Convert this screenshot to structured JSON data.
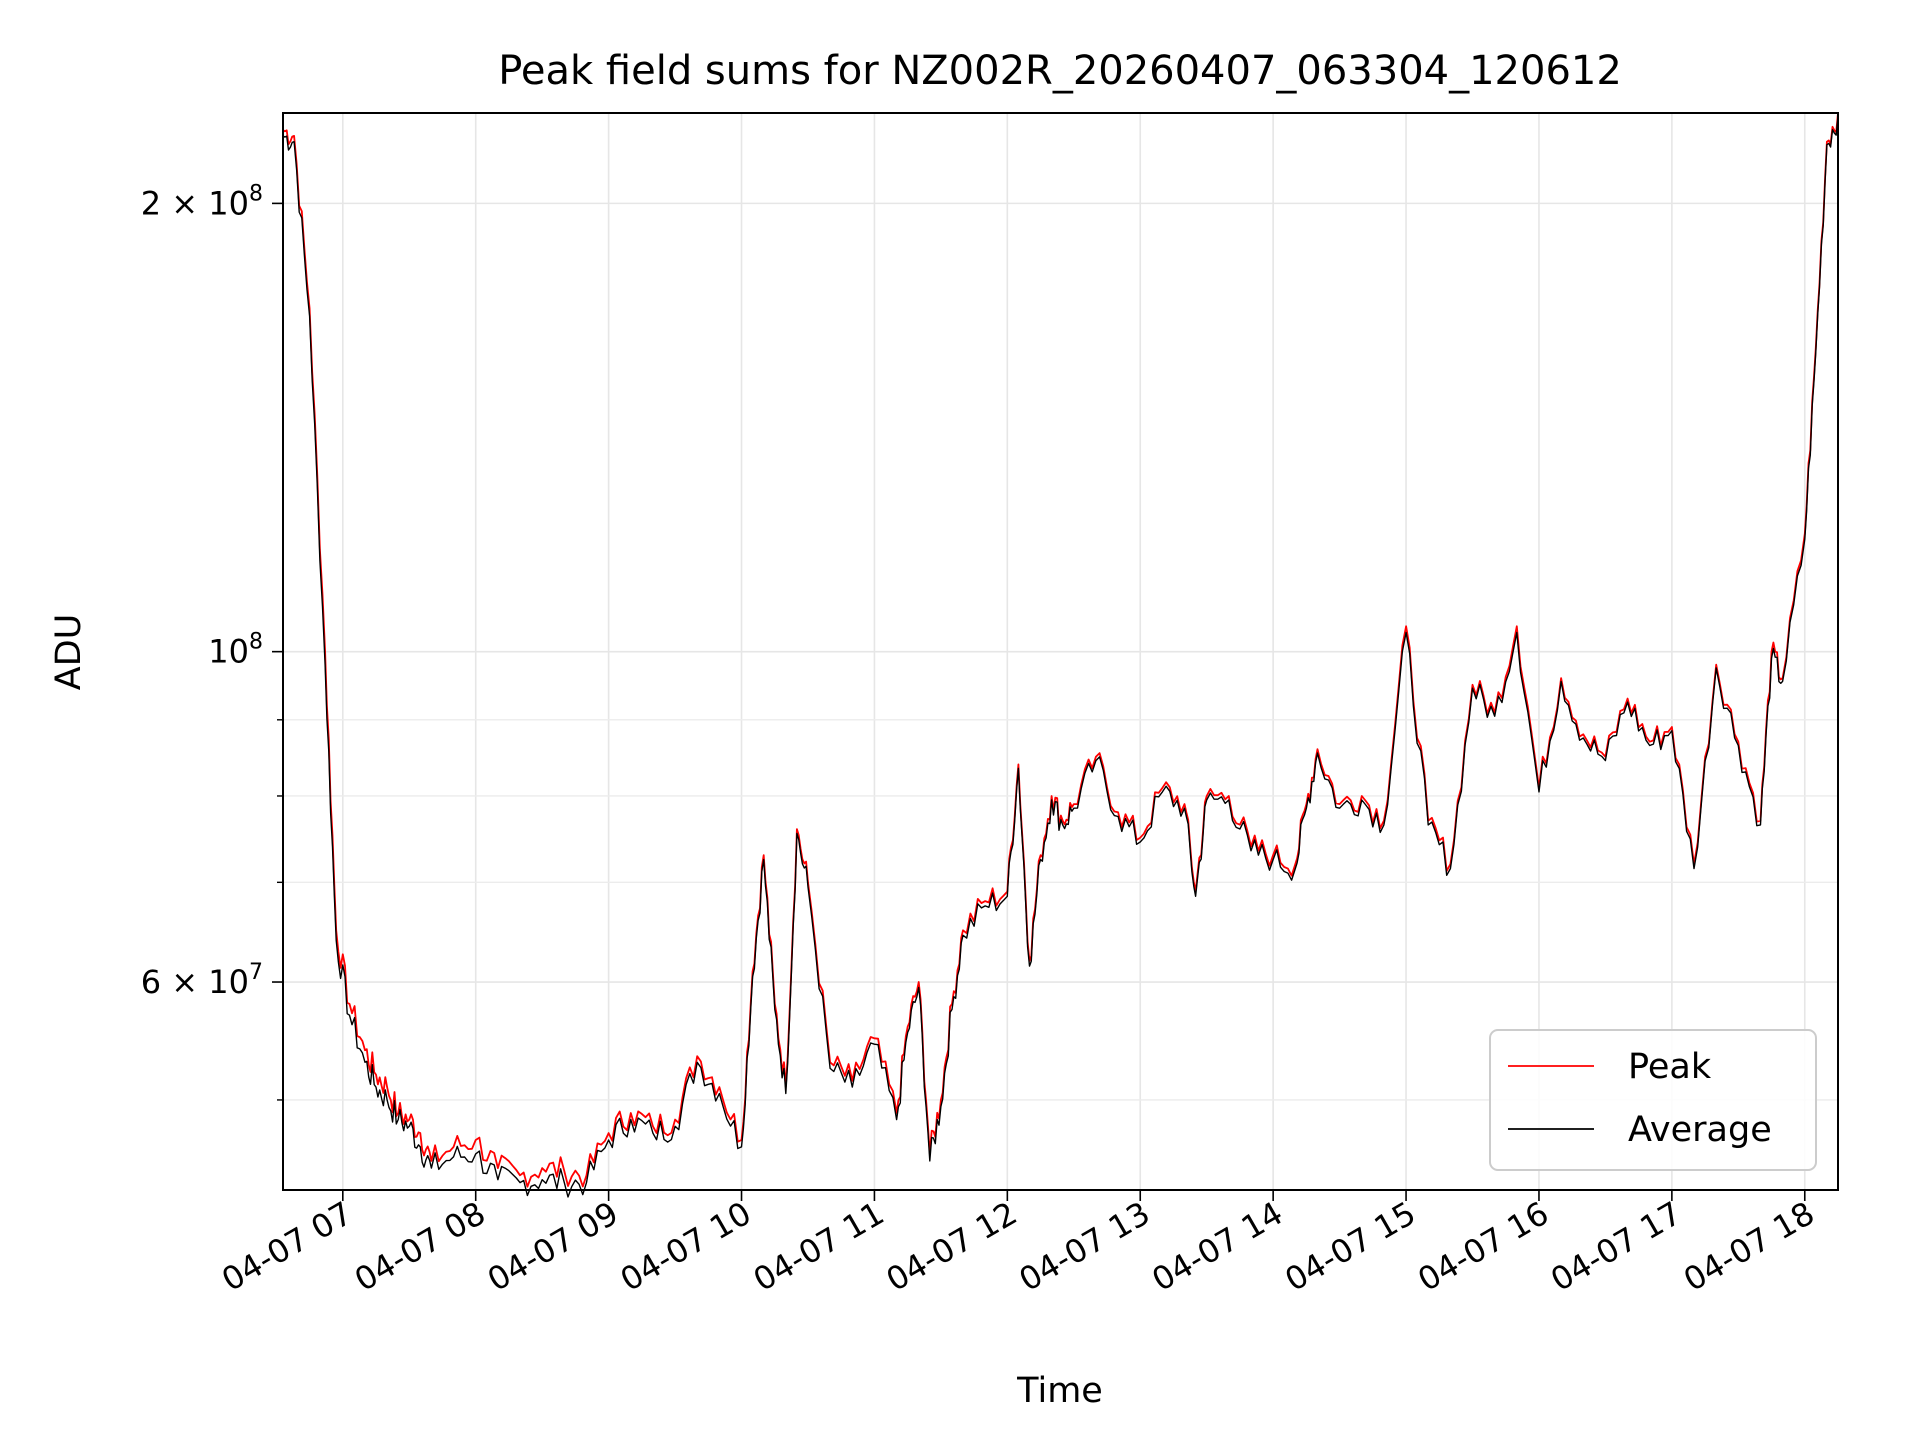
{
  "chart_data": {
    "type": "line",
    "title": "Peak field sums for NZ002R_20260407_063304_120612",
    "xlabel": "Time",
    "ylabel": "ADU",
    "yscale": "log",
    "xlim": [
      "2026-04-07 06:33",
      "2026-04-07 18:15"
    ],
    "ylim": [
      43500000,
      230000000
    ],
    "x_ticks": [
      "04-07 07",
      "04-07 08",
      "04-07 09",
      "04-07 10",
      "04-07 11",
      "04-07 12",
      "04-07 13",
      "04-07 14",
      "04-07 15",
      "04-07 16",
      "04-07 17",
      "04-07 18"
    ],
    "y_tick_labels": [
      {
        "value": 200000000,
        "base": "2 × 10",
        "exp": "8"
      },
      {
        "value": 100000000,
        "base": "10",
        "exp": "8"
      },
      {
        "value": 60000000,
        "base": "6 × 10",
        "exp": "7"
      }
    ],
    "y_minor_ticks": [
      50000000,
      70000000,
      80000000,
      90000000
    ],
    "grid": true,
    "legend_position": "lower-right",
    "x": [
      "06:33",
      "06:38",
      "06:45",
      "06:52",
      "06:57",
      "07:03",
      "07:10",
      "07:15",
      "07:20",
      "07:25",
      "07:30",
      "07:35",
      "07:40",
      "07:50",
      "08:00",
      "08:10",
      "08:20",
      "08:30",
      "08:40",
      "08:50",
      "09:00",
      "09:10",
      "09:20",
      "09:30",
      "09:40",
      "09:50",
      "10:00",
      "10:05",
      "10:10",
      "10:15",
      "10:20",
      "10:25",
      "10:30",
      "10:40",
      "10:50",
      "11:00",
      "11:10",
      "11:15",
      "11:20",
      "11:25",
      "11:30",
      "11:35",
      "11:40",
      "11:50",
      "12:00",
      "12:05",
      "12:10",
      "12:15",
      "12:20",
      "12:25",
      "12:30",
      "12:40",
      "12:50",
      "13:00",
      "13:10",
      "13:20",
      "13:25",
      "13:30",
      "13:40",
      "13:50",
      "14:00",
      "14:10",
      "14:15",
      "14:20",
      "14:30",
      "14:40",
      "14:50",
      "15:00",
      "15:10",
      "15:20",
      "15:30",
      "15:40",
      "15:50",
      "16:00",
      "16:10",
      "16:20",
      "16:30",
      "16:40",
      "16:50",
      "17:00",
      "17:10",
      "17:20",
      "17:30",
      "17:40",
      "17:45",
      "17:50",
      "18:00",
      "18:05",
      "18:10",
      "18:15"
    ],
    "series": [
      {
        "name": "Peak",
        "color": "#ff0000",
        "values": [
          224000000,
          222000000,
          170000000,
          100000000,
          65000000,
          58000000,
          54000000,
          52000000,
          51000000,
          49000000,
          48500000,
          47500000,
          45500000,
          46500000,
          47000000,
          45000000,
          44500000,
          45000000,
          44800000,
          44500000,
          47500000,
          49000000,
          48000000,
          48500000,
          53500000,
          51000000,
          47000000,
          61000000,
          73000000,
          58000000,
          51000000,
          76000000,
          70000000,
          53000000,
          51500000,
          55000000,
          49000000,
          56000000,
          60000000,
          46000000,
          50000000,
          58000000,
          65000000,
          68000000,
          69000000,
          84000000,
          62000000,
          73000000,
          80000000,
          77000000,
          79000000,
          85000000,
          78000000,
          75000000,
          81000000,
          79000000,
          69000000,
          80000000,
          80000000,
          74000000,
          73000000,
          72000000,
          79000000,
          86000000,
          79000000,
          80000000,
          77000000,
          104000000,
          77000000,
          72000000,
          95000000,
          91000000,
          104000000,
          81000000,
          96000000,
          88000000,
          85000000,
          93000000,
          87000000,
          89000000,
          72000000,
          98000000,
          87000000,
          77000000,
          100000000,
          96000000,
          120000000,
          160000000,
          220000000,
          230000000
        ]
      },
      {
        "name": "Average",
        "color": "#000000",
        "values": [
          222000000,
          220000000,
          168000000,
          98000000,
          64000000,
          57000000,
          53000000,
          51000000,
          50000000,
          48500000,
          48000000,
          46500000,
          45000000,
          45800000,
          46000000,
          44200000,
          44000000,
          44200000,
          44000000,
          44000000,
          47000000,
          48500000,
          47500000,
          48000000,
          53000000,
          50500000,
          46500000,
          60500000,
          72500000,
          57500000,
          50500000,
          75500000,
          69500000,
          52500000,
          51000000,
          54500000,
          48500000,
          55500000,
          59500000,
          45500000,
          49500000,
          57500000,
          64500000,
          67500000,
          68500000,
          83500000,
          61500000,
          72500000,
          79500000,
          76500000,
          78500000,
          84500000,
          77500000,
          74500000,
          80500000,
          78500000,
          68500000,
          79500000,
          79500000,
          73500000,
          72500000,
          71500000,
          78500000,
          85500000,
          78500000,
          79500000,
          76500000,
          103000000,
          76500000,
          71500000,
          94500000,
          90500000,
          103000000,
          80500000,
          95500000,
          87500000,
          84500000,
          92500000,
          86500000,
          88500000,
          71500000,
          97500000,
          86500000,
          76500000,
          99000000,
          95500000,
          119000000,
          159000000,
          219000000,
          229000000
        ]
      }
    ]
  }
}
